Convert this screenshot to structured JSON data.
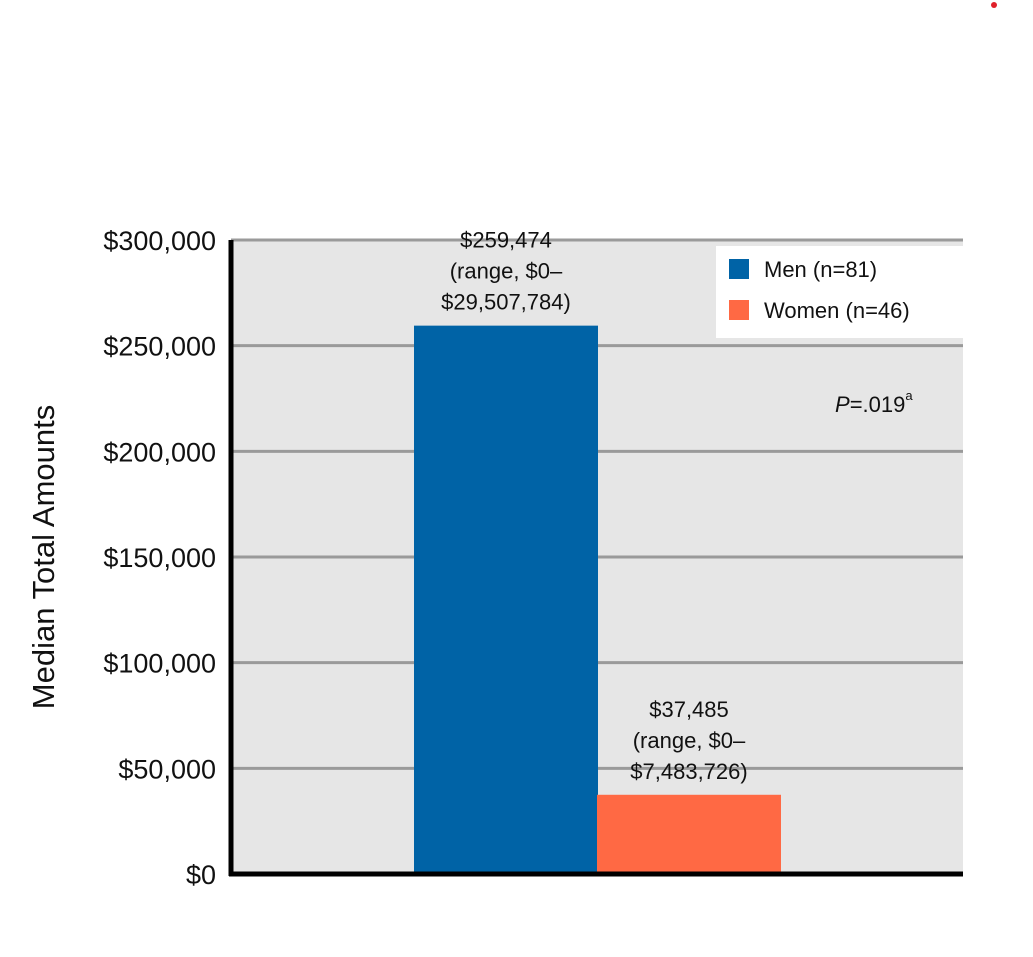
{
  "chart_data": {
    "type": "bar",
    "categories": [
      "Men (n=81)",
      "Women (n=46)"
    ],
    "values": [
      259474,
      37485
    ],
    "title": "",
    "xlabel": "",
    "ylabel": "Median Total Amounts",
    "ylim": [
      0,
      300000
    ],
    "yticks": [
      0,
      50000,
      100000,
      150000,
      200000,
      250000,
      300000
    ],
    "ytick_labels": [
      "$0",
      "$50,000",
      "$100,000",
      "$150,000",
      "$200,000",
      "$250,000",
      "$300,000"
    ],
    "grid": true,
    "legend_position": "top-right",
    "series_colors": [
      "#0063A6",
      "#FF6944"
    ],
    "data_labels": [
      [
        "$259,474",
        "(range, $0–",
        "$29,507,784)"
      ],
      [
        "$37,485",
        "(range, $0–",
        "$7,483,726)"
      ]
    ],
    "annotation": {
      "prefix": "P",
      "text": "=.019",
      "superscript": "a"
    },
    "plot_background": "#E6E6E6",
    "gridline_color": "#9A9A9A"
  }
}
